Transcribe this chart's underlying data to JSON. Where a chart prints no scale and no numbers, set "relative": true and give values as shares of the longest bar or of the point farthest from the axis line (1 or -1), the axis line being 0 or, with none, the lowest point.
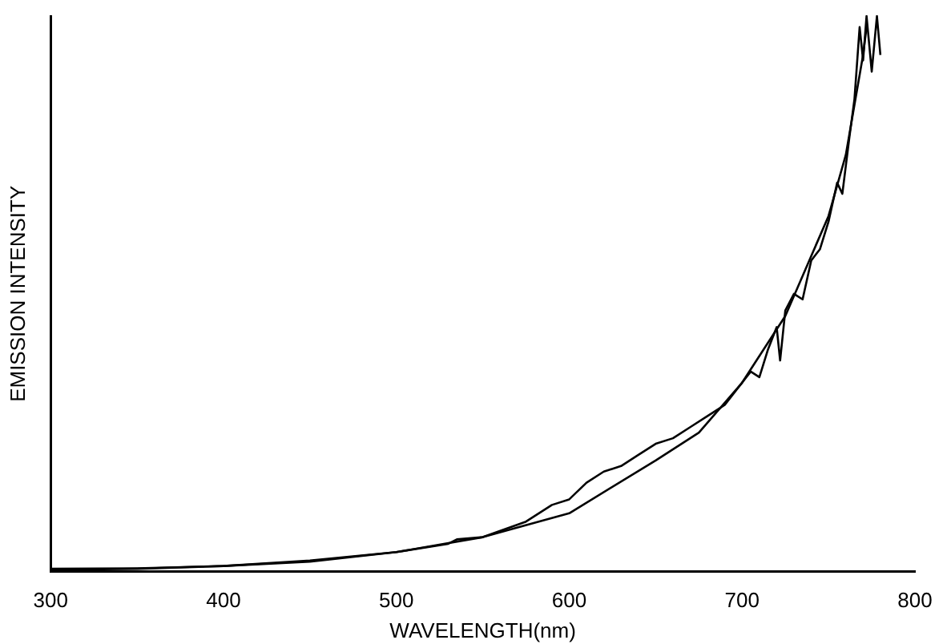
{
  "chart_data": {
    "type": "line",
    "xlabel": "WAVELENGTH(nm)",
    "ylabel": "EMISSION INTENSITY",
    "relative": true,
    "xlim": [
      300,
      800
    ],
    "xticks": [
      300,
      400,
      500,
      600,
      700,
      800
    ],
    "grid": false,
    "legend": false,
    "marker": "none",
    "line_style": "solid",
    "series": [
      {
        "color": "#000000",
        "x": [
          300,
          350,
          400,
          450,
          500,
          530,
          535,
          550,
          575,
          590,
          600,
          610,
          620,
          630,
          640,
          650,
          660,
          670,
          680,
          690,
          700,
          705,
          710,
          715,
          720,
          722,
          725,
          730,
          735,
          740,
          745,
          750,
          755,
          758,
          762,
          765,
          768,
          770,
          772,
          775,
          778,
          780
        ],
        "values": [
          0.005,
          0.006,
          0.01,
          0.02,
          0.035,
          0.05,
          0.058,
          0.062,
          0.09,
          0.12,
          0.13,
          0.16,
          0.18,
          0.19,
          0.21,
          0.23,
          0.24,
          0.26,
          0.28,
          0.3,
          0.34,
          0.36,
          0.35,
          0.4,
          0.44,
          0.38,
          0.47,
          0.5,
          0.49,
          0.56,
          0.58,
          0.63,
          0.7,
          0.68,
          0.78,
          0.85,
          0.98,
          0.92,
          1.0,
          0.9,
          1.0,
          0.93
        ]
      },
      {
        "color": "#000000",
        "x": [
          300,
          350,
          400,
          450,
          500,
          550,
          600,
          650,
          675,
          700,
          725,
          750,
          760,
          770,
          772
        ],
        "values": [
          0.003,
          0.005,
          0.01,
          0.018,
          0.035,
          0.062,
          0.105,
          0.2,
          0.25,
          0.34,
          0.46,
          0.64,
          0.75,
          0.93,
          0.98
        ]
      }
    ]
  }
}
